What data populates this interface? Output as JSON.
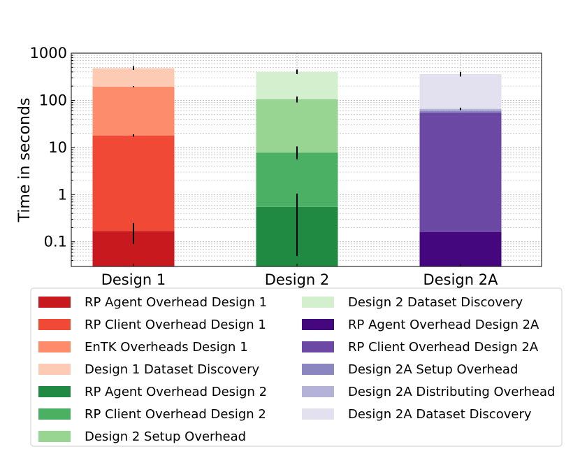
{
  "chart_data": {
    "type": "bar",
    "stacked": true,
    "yscale": "log",
    "title": "",
    "xlabel": "",
    "ylabel": "Time in seconds",
    "ylim": [
      0.03,
      1000
    ],
    "yticks": [
      0.1,
      1,
      10,
      100,
      1000
    ],
    "ytick_labels": [
      "0.1",
      "1",
      "10",
      "100",
      "1000"
    ],
    "grid": "both",
    "legend_position": "bottom",
    "categories": [
      "Design 1",
      "Design 2",
      "Design 2A"
    ],
    "series": [
      {
        "name": "RP Agent Overhead Design 1",
        "category": "Design 1",
        "cumulative": 0.17,
        "err_low": 0.09,
        "err_high": 0.25,
        "color": "#c8191e"
      },
      {
        "name": "RP Client Overhead Design 1",
        "category": "Design 1",
        "cumulative": 18,
        "err_low": 17,
        "err_high": 19,
        "color": "#f04a36"
      },
      {
        "name": "EnTK Overheads Design 1",
        "category": "Design 1",
        "cumulative": 195,
        "err_low": 190,
        "err_high": 200,
        "color": "#fc8c6c"
      },
      {
        "name": "Design 1 Dataset Discovery",
        "category": "Design 1",
        "cumulative": 480,
        "err_low": 440,
        "err_high": 530,
        "color": "#fdcab4"
      },
      {
        "name": "RP Agent Overhead Design 2",
        "category": "Design 2",
        "cumulative": 0.55,
        "err_low": 0.05,
        "err_high": 1.05,
        "color": "#208a42"
      },
      {
        "name": "RP Client Overhead Design 2",
        "category": "Design 2",
        "cumulative": 7.8,
        "err_low": 5.6,
        "err_high": 10.5,
        "color": "#4bb063"
      },
      {
        "name": "Design 2 Setup Overhead",
        "category": "Design 2",
        "cumulative": 105,
        "err_low": 90,
        "err_high": 120,
        "color": "#98d593"
      },
      {
        "name": "Design 2 Dataset Discovery",
        "category": "Design 2",
        "cumulative": 400,
        "err_low": 360,
        "err_high": 450,
        "color": "#d4efcd"
      },
      {
        "name": "RP Agent Overhead Design 2A",
        "category": "Design 2A",
        "cumulative": 0.16,
        "err_low": 0.16,
        "err_high": 0.16,
        "color": "#44077e"
      },
      {
        "name": "RP Client Overhead Design 2A",
        "category": "Design 2A",
        "cumulative": 55,
        "err_low": 55,
        "err_high": 55,
        "color": "#6a48a4"
      },
      {
        "name": "Design 2A Setup Overhead",
        "category": "Design 2A",
        "cumulative": 60,
        "err_low": 60,
        "err_high": 60,
        "color": "#8b86bf"
      },
      {
        "name": "Design 2A Distributing Overhead",
        "category": "Design 2A",
        "cumulative": 66,
        "err_low": 62,
        "err_high": 70,
        "color": "#b4b2d8"
      },
      {
        "name": "Design 2A Dataset Discovery",
        "category": "Design 2A",
        "cumulative": 360,
        "err_low": 320,
        "err_high": 400,
        "color": "#e3e1ef"
      }
    ]
  }
}
